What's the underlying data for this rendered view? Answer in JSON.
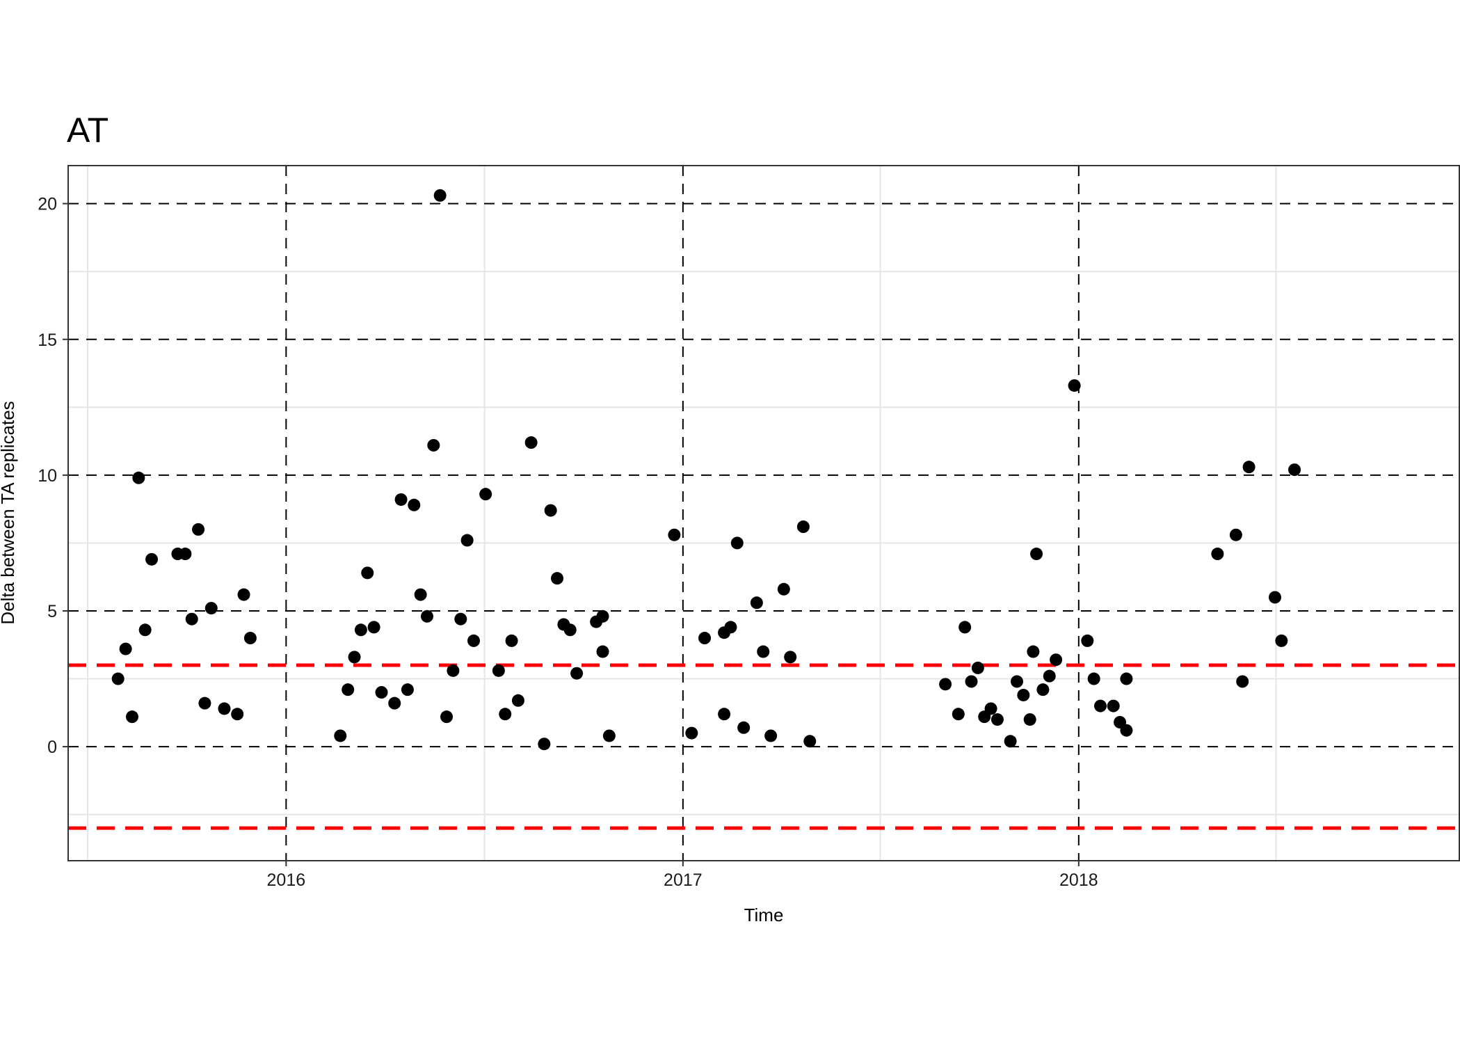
{
  "chart_data": {
    "type": "scatter",
    "title": "AT",
    "xlabel": "Time",
    "ylabel": "Delta between TA replicates",
    "xlim": [
      "2015-06-14",
      "2018-12-18"
    ],
    "ylim": [
      -4.2,
      21.4
    ],
    "x_major_ticks": [
      "2016-01-01",
      "2017-01-01",
      "2018-01-01"
    ],
    "x_tick_labels": [
      "2016",
      "2017",
      "2018"
    ],
    "y_major_ticks": [
      0,
      5,
      10,
      15,
      20
    ],
    "y_tick_labels": [
      "0",
      "5",
      "10",
      "15",
      "20"
    ],
    "reference_lines": {
      "y": [
        3,
        -3
      ],
      "color": "#ff0000",
      "style": "dashed"
    },
    "major_grid_style": "black dashed",
    "point_color": "#000000",
    "points": [
      {
        "x": "2015-07-30",
        "y": 2.5
      },
      {
        "x": "2015-08-06",
        "y": 3.6
      },
      {
        "x": "2015-08-12",
        "y": 1.1
      },
      {
        "x": "2015-08-18",
        "y": 9.9
      },
      {
        "x": "2015-08-24",
        "y": 4.3
      },
      {
        "x": "2015-08-30",
        "y": 6.9
      },
      {
        "x": "2015-09-23",
        "y": 7.1
      },
      {
        "x": "2015-09-30",
        "y": 7.1
      },
      {
        "x": "2015-10-06",
        "y": 4.7
      },
      {
        "x": "2015-10-12",
        "y": 8.0
      },
      {
        "x": "2015-10-18",
        "y": 1.6
      },
      {
        "x": "2015-10-24",
        "y": 5.1
      },
      {
        "x": "2015-11-05",
        "y": 1.4
      },
      {
        "x": "2015-11-17",
        "y": 1.2
      },
      {
        "x": "2015-11-23",
        "y": 5.6
      },
      {
        "x": "2015-11-29",
        "y": 4.0
      },
      {
        "x": "2016-02-20",
        "y": 0.4
      },
      {
        "x": "2016-02-27",
        "y": 2.1
      },
      {
        "x": "2016-03-04",
        "y": 3.3
      },
      {
        "x": "2016-03-10",
        "y": 4.3
      },
      {
        "x": "2016-03-16",
        "y": 6.4
      },
      {
        "x": "2016-03-22",
        "y": 4.4
      },
      {
        "x": "2016-03-29",
        "y": 2.0
      },
      {
        "x": "2016-04-10",
        "y": 1.6
      },
      {
        "x": "2016-04-16",
        "y": 9.1
      },
      {
        "x": "2016-04-22",
        "y": 2.1
      },
      {
        "x": "2016-04-28",
        "y": 8.9
      },
      {
        "x": "2016-05-04",
        "y": 5.6
      },
      {
        "x": "2016-05-10",
        "y": 4.8
      },
      {
        "x": "2016-05-16",
        "y": 11.1
      },
      {
        "x": "2016-05-22",
        "y": 20.3
      },
      {
        "x": "2016-05-28",
        "y": 1.1
      },
      {
        "x": "2016-06-03",
        "y": 2.8
      },
      {
        "x": "2016-06-10",
        "y": 4.7
      },
      {
        "x": "2016-06-16",
        "y": 7.6
      },
      {
        "x": "2016-06-22",
        "y": 3.9
      },
      {
        "x": "2016-07-03",
        "y": 9.3
      },
      {
        "x": "2016-07-15",
        "y": 2.8
      },
      {
        "x": "2016-07-21",
        "y": 1.2
      },
      {
        "x": "2016-07-27",
        "y": 3.9
      },
      {
        "x": "2016-08-02",
        "y": 1.7
      },
      {
        "x": "2016-08-14",
        "y": 11.2
      },
      {
        "x": "2016-08-26",
        "y": 0.1
      },
      {
        "x": "2016-09-01",
        "y": 8.7
      },
      {
        "x": "2016-09-07",
        "y": 6.2
      },
      {
        "x": "2016-09-13",
        "y": 4.5
      },
      {
        "x": "2016-09-19",
        "y": 4.3
      },
      {
        "x": "2016-09-25",
        "y": 2.7
      },
      {
        "x": "2016-10-13",
        "y": 4.6
      },
      {
        "x": "2016-10-19",
        "y": 3.5
      },
      {
        "x": "2016-10-19",
        "y": 4.8
      },
      {
        "x": "2016-10-25",
        "y": 0.4
      },
      {
        "x": "2016-12-24",
        "y": 7.8
      },
      {
        "x": "2017-01-09",
        "y": 0.5
      },
      {
        "x": "2017-01-21",
        "y": 4.0
      },
      {
        "x": "2017-02-08",
        "y": 1.2
      },
      {
        "x": "2017-02-08",
        "y": 4.2
      },
      {
        "x": "2017-02-14",
        "y": 4.4
      },
      {
        "x": "2017-02-20",
        "y": 7.5
      },
      {
        "x": "2017-02-26",
        "y": 0.7
      },
      {
        "x": "2017-03-10",
        "y": 5.3
      },
      {
        "x": "2017-03-16",
        "y": 3.5
      },
      {
        "x": "2017-03-23",
        "y": 0.4
      },
      {
        "x": "2017-04-04",
        "y": 5.8
      },
      {
        "x": "2017-04-10",
        "y": 3.3
      },
      {
        "x": "2017-04-22",
        "y": 8.1
      },
      {
        "x": "2017-04-28",
        "y": 0.2
      },
      {
        "x": "2017-08-31",
        "y": 2.3
      },
      {
        "x": "2017-09-12",
        "y": 1.2
      },
      {
        "x": "2017-09-18",
        "y": 4.4
      },
      {
        "x": "2017-09-24",
        "y": 2.4
      },
      {
        "x": "2017-09-30",
        "y": 2.9
      },
      {
        "x": "2017-10-06",
        "y": 1.1
      },
      {
        "x": "2017-10-12",
        "y": 1.4
      },
      {
        "x": "2017-10-18",
        "y": 1.0
      },
      {
        "x": "2017-10-30",
        "y": 0.2
      },
      {
        "x": "2017-11-05",
        "y": 2.4
      },
      {
        "x": "2017-11-11",
        "y": 1.9
      },
      {
        "x": "2017-11-17",
        "y": 1.0
      },
      {
        "x": "2017-11-20",
        "y": 3.5
      },
      {
        "x": "2017-11-23",
        "y": 7.1
      },
      {
        "x": "2017-11-29",
        "y": 2.1
      },
      {
        "x": "2017-12-05",
        "y": 2.6
      },
      {
        "x": "2017-12-11",
        "y": 3.2
      },
      {
        "x": "2017-12-28",
        "y": 13.3
      },
      {
        "x": "2018-01-09",
        "y": 3.9
      },
      {
        "x": "2018-01-15",
        "y": 2.5
      },
      {
        "x": "2018-01-21",
        "y": 1.5
      },
      {
        "x": "2018-02-02",
        "y": 1.5
      },
      {
        "x": "2018-02-08",
        "y": 0.9
      },
      {
        "x": "2018-02-14",
        "y": 2.5
      },
      {
        "x": "2018-02-14",
        "y": 0.6
      },
      {
        "x": "2018-05-09",
        "y": 7.1
      },
      {
        "x": "2018-05-26",
        "y": 7.8
      },
      {
        "x": "2018-06-01",
        "y": 2.4
      },
      {
        "x": "2018-06-07",
        "y": 10.3
      },
      {
        "x": "2018-07-01",
        "y": 5.5
      },
      {
        "x": "2018-07-07",
        "y": 3.9
      },
      {
        "x": "2018-07-19",
        "y": 10.2
      }
    ]
  }
}
